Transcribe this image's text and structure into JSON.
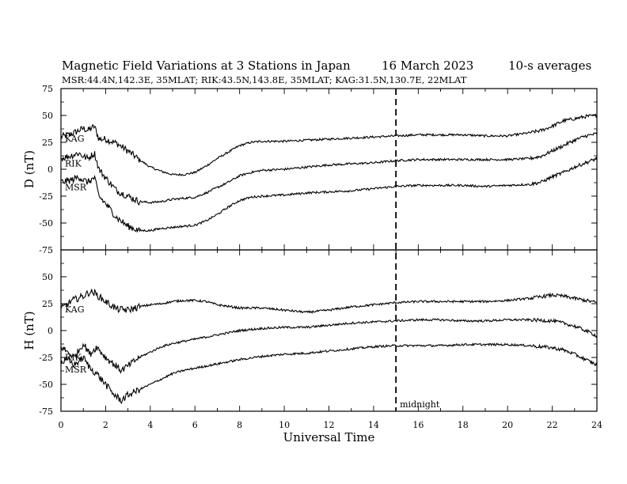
{
  "header": {
    "title": "Magnetic Field Variations at 3 Stations in Japan",
    "date": "16 March   2023",
    "averaging": "10-s averages",
    "stations_line": "MSR:44.4N,142.3E, 35MLAT;  RIK:43.5N,143.8E, 35MLAT;  KAG:31.5N,130.7E, 22MLAT"
  },
  "chart_data": [
    {
      "type": "line",
      "panel": "D",
      "ylabel": "D (nT)",
      "xlabel": "",
      "xlim": [
        0,
        24
      ],
      "ylim": [
        -75,
        75
      ],
      "yticks": [
        75,
        50,
        25,
        0,
        -25,
        -50,
        -75
      ],
      "grid": false,
      "series": [
        {
          "name": "KAG",
          "x": [
            0,
            0.5,
            1,
            1.2,
            1.5,
            1.7,
            2,
            2.5,
            3,
            3.5,
            4,
            4.5,
            5,
            5.5,
            6,
            6.5,
            7,
            7.5,
            8,
            8.5,
            9,
            10,
            11,
            12,
            13,
            14,
            15,
            16,
            17,
            18,
            19,
            20,
            21,
            21.5,
            22,
            22.5,
            23,
            23.5,
            24
          ],
          "y": [
            30,
            33,
            38,
            36,
            40,
            28,
            28,
            24,
            17,
            9,
            2,
            -2,
            -5,
            -5,
            -3,
            3,
            10,
            16,
            22,
            25,
            26,
            26,
            27,
            28,
            29,
            30,
            31,
            32,
            32,
            32,
            31,
            31,
            34,
            36,
            40,
            45,
            47,
            49,
            50
          ]
        },
        {
          "name": "RIK",
          "x": [
            0,
            0.5,
            0.8,
            1,
            1.2,
            1.5,
            1.7,
            2,
            2.5,
            3,
            3.5,
            4,
            4.5,
            5,
            5.5,
            6,
            6.5,
            7,
            7.5,
            8,
            8.5,
            9,
            10,
            11,
            12,
            13,
            14,
            15,
            16,
            17,
            18,
            19,
            20,
            21,
            21.5,
            22,
            22.5,
            23,
            23.5,
            24
          ],
          "y": [
            10,
            13,
            15,
            12,
            10,
            15,
            0,
            -8,
            -20,
            -25,
            -30,
            -31,
            -30,
            -28,
            -27,
            -26,
            -22,
            -17,
            -12,
            -6,
            -3,
            -1,
            0,
            2,
            4,
            5,
            6,
            8,
            9,
            9,
            9,
            9,
            9,
            10,
            12,
            17,
            22,
            27,
            31,
            33
          ]
        },
        {
          "name": "MSR",
          "x": [
            0,
            0.5,
            0.8,
            1,
            1.2,
            1.5,
            1.7,
            2,
            2.5,
            3,
            3.5,
            4,
            4.5,
            5,
            5.5,
            6,
            6.5,
            7,
            7.5,
            8,
            8.5,
            9,
            10,
            11,
            12,
            13,
            14,
            15,
            16,
            17,
            18,
            19,
            20,
            21,
            21.5,
            22,
            22.5,
            23,
            23.5,
            24
          ],
          "y": [
            -12,
            -10,
            -7,
            -10,
            -12,
            -8,
            -25,
            -32,
            -45,
            -53,
            -57,
            -57,
            -55,
            -54,
            -53,
            -52,
            -48,
            -42,
            -35,
            -29,
            -26,
            -25,
            -24,
            -22,
            -21,
            -20,
            -18,
            -16,
            -15,
            -15,
            -15,
            -16,
            -15,
            -14,
            -12,
            -7,
            -3,
            2,
            6,
            10
          ]
        }
      ]
    },
    {
      "type": "line",
      "panel": "H",
      "ylabel": "H (nT)",
      "xlabel": "Universal Time",
      "xlim": [
        0,
        24
      ],
      "ylim": [
        -75,
        75
      ],
      "xticks": [
        0,
        2,
        4,
        6,
        8,
        10,
        12,
        14,
        16,
        18,
        20,
        22,
        24
      ],
      "yticks": [
        50,
        25,
        0,
        -25,
        -50,
        -75
      ],
      "grid": false,
      "marker_line": {
        "x": 15,
        "label": "midnight"
      },
      "series": [
        {
          "name": "KAG",
          "x": [
            0,
            0.5,
            1,
            1.3,
            1.5,
            1.8,
            2,
            2.5,
            3,
            3.5,
            4,
            4.5,
            5,
            5.5,
            6,
            6.5,
            7,
            8,
            9,
            10,
            11,
            12,
            13,
            14,
            15,
            16,
            17,
            18,
            19,
            20,
            21,
            22,
            22.5,
            23,
            23.5,
            24
          ],
          "y": [
            20,
            28,
            32,
            36,
            35,
            30,
            27,
            20,
            19,
            22,
            24,
            25,
            27,
            28,
            28,
            27,
            24,
            21,
            21,
            19,
            17,
            19,
            22,
            24,
            26,
            27,
            27,
            27,
            27,
            28,
            30,
            33,
            32,
            30,
            28,
            26
          ]
        },
        {
          "name": "RIK",
          "x": [
            0,
            0.3,
            0.6,
            1,
            1.3,
            1.6,
            2,
            2.3,
            2.7,
            3,
            3.5,
            4,
            4.5,
            5,
            5.5,
            6,
            6.5,
            7,
            7.5,
            8,
            9,
            10,
            11,
            12,
            13,
            14,
            15,
            16,
            17,
            18,
            19,
            20,
            21,
            22,
            22.5,
            23,
            23.5,
            24
          ],
          "y": [
            -15,
            -20,
            -25,
            -12,
            -22,
            -15,
            -25,
            -30,
            -37,
            -33,
            -25,
            -20,
            -15,
            -12,
            -10,
            -8,
            -6,
            -4,
            -2,
            0,
            2,
            3,
            3,
            5,
            7,
            8,
            9,
            10,
            10,
            9,
            9,
            10,
            10,
            9,
            7,
            4,
            0,
            -5
          ]
        },
        {
          "name": "MSR",
          "x": [
            0,
            0.3,
            0.6,
            1,
            1.3,
            1.6,
            2,
            2.3,
            2.7,
            3,
            3.5,
            4,
            4.5,
            5,
            5.5,
            6,
            6.5,
            7,
            7.5,
            8,
            9,
            10,
            11,
            12,
            13,
            14,
            15,
            16,
            17,
            18,
            19,
            20,
            21,
            22,
            22.5,
            23,
            23.5,
            24
          ],
          "y": [
            -30,
            -27,
            -32,
            -25,
            -35,
            -40,
            -50,
            -58,
            -65,
            -60,
            -55,
            -50,
            -45,
            -40,
            -37,
            -35,
            -33,
            -31,
            -29,
            -27,
            -24,
            -22,
            -21,
            -19,
            -17,
            -15,
            -14,
            -14,
            -14,
            -13,
            -13,
            -13,
            -14,
            -16,
            -18,
            -22,
            -27,
            -32
          ]
        }
      ]
    }
  ]
}
